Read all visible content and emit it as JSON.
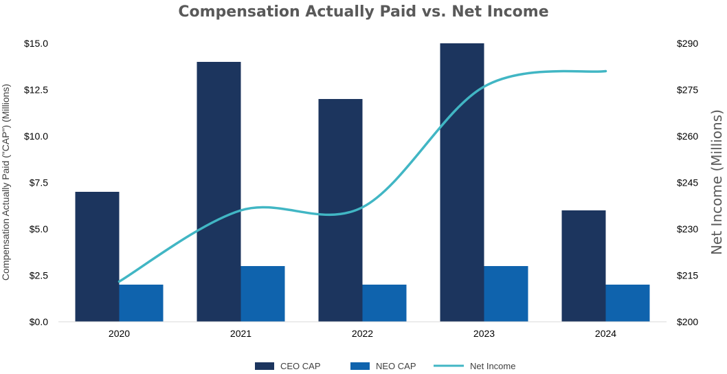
{
  "chart_data": {
    "type": "bar",
    "title": "Compensation Actually Paid vs. Net Income",
    "categories": [
      "2020",
      "2021",
      "2022",
      "2023",
      "2024"
    ],
    "ylabel": "Compensation Actually Paid (\"CAP\") (Millions)",
    "y2label": "Net Income (Millions)",
    "ylim": [
      0,
      15
    ],
    "y2lim": [
      200,
      290
    ],
    "yticks": [
      "$0.0",
      "$2.5",
      "$5.0",
      "$7.5",
      "$10.0",
      "$12.5",
      "$15.0"
    ],
    "y2ticks": [
      "$200",
      "$215",
      "$230",
      "$245",
      "$260",
      "$275",
      "$290"
    ],
    "series": [
      {
        "name": "CEO CAP",
        "type": "bar",
        "axis": "left",
        "color": "#1c355e",
        "values": [
          7.0,
          14.0,
          12.0,
          15.0,
          6.0
        ]
      },
      {
        "name": "NEO CAP",
        "type": "bar",
        "axis": "left",
        "color": "#0f63ad",
        "values": [
          2.0,
          3.0,
          2.0,
          3.0,
          2.0
        ]
      },
      {
        "name": "Net Income",
        "type": "line",
        "axis": "right",
        "color": "#41b6c4",
        "values": [
          213,
          236,
          237,
          276,
          281
        ]
      }
    ],
    "legend_position": "bottom",
    "grid": false
  }
}
